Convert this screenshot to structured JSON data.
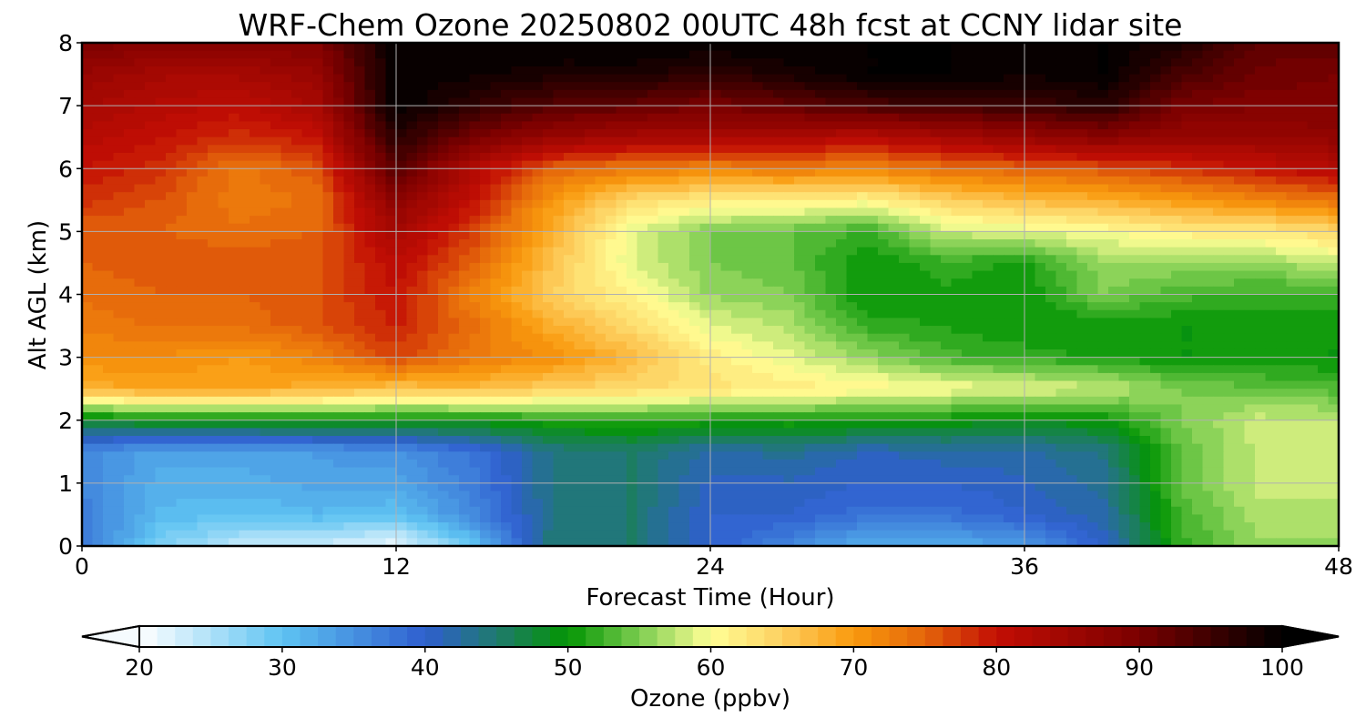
{
  "chart_data": {
    "type": "heatmap",
    "title": "WRF-Chem Ozone  20250802 00UTC 48h fcst at CCNY lidar site",
    "xlabel": "Forecast Time (Hour)",
    "ylabel": "Alt AGL (km)",
    "xlim": [
      0,
      48
    ],
    "ylim": [
      0,
      8
    ],
    "x_ticks": [
      0,
      12,
      24,
      36,
      48
    ],
    "y_ticks": [
      0,
      1,
      2,
      3,
      4,
      5,
      6,
      7,
      8
    ],
    "grid": true,
    "x": [
      0,
      3,
      6,
      9,
      12,
      15,
      18,
      21,
      24,
      27,
      30,
      33,
      36,
      39,
      42,
      45,
      48
    ],
    "y": [
      0,
      0.5,
      1,
      1.5,
      2,
      2.5,
      3,
      3.5,
      4,
      4.5,
      5,
      5.5,
      6,
      6.5,
      7,
      7.5,
      8
    ],
    "z_ppbv": [
      [
        38,
        28,
        24,
        23,
        21,
        30,
        45,
        45,
        40,
        36,
        32,
        32,
        34,
        40,
        52,
        56,
        56
      ],
      [
        37,
        31,
        30,
        31,
        30,
        36,
        44,
        45,
        40,
        40,
        38,
        38,
        40,
        42,
        53,
        57,
        57
      ],
      [
        36,
        32,
        32,
        33,
        33,
        37,
        44,
        45,
        41,
        41,
        40,
        40,
        41,
        43,
        54,
        58,
        58
      ],
      [
        36,
        33,
        33,
        34,
        35,
        38,
        44,
        45,
        42,
        43,
        41,
        42,
        42,
        44,
        54,
        58,
        58
      ],
      [
        48,
        50,
        50,
        50,
        50,
        50,
        51,
        52,
        51,
        51,
        51,
        50,
        49,
        50,
        55,
        58,
        58
      ],
      [
        68,
        69,
        69,
        68,
        66,
        67,
        65,
        64,
        63,
        62,
        61,
        60,
        59,
        58,
        55,
        54,
        53
      ],
      [
        71,
        71,
        70,
        72,
        77,
        73,
        71,
        67,
        62,
        59,
        56,
        53,
        52,
        51,
        50,
        50,
        50
      ],
      [
        73,
        74,
        74,
        76,
        79,
        74,
        68,
        64,
        59,
        57,
        52,
        51,
        50,
        50,
        50,
        50,
        50
      ],
      [
        74,
        75,
        75,
        76,
        80,
        72,
        65,
        61,
        56,
        55,
        50,
        51,
        50,
        55,
        53,
        52,
        52
      ],
      [
        75,
        76,
        76,
        76,
        81,
        75,
        66,
        59,
        55,
        54,
        50,
        52,
        51,
        56,
        56,
        56,
        58
      ],
      [
        75,
        75,
        74,
        75,
        84,
        77,
        68,
        59,
        55,
        54,
        52,
        58,
        59,
        60,
        62,
        62,
        64
      ],
      [
        78,
        76,
        73,
        74,
        88,
        80,
        70,
        64,
        62,
        62,
        61,
        65,
        67,
        68,
        70,
        72,
        74
      ],
      [
        80,
        78,
        73,
        76,
        93,
        82,
        75,
        73,
        72,
        73,
        72,
        74,
        75,
        76,
        78,
        80,
        82
      ],
      [
        82,
        80,
        78,
        80,
        97,
        90,
        86,
        84,
        84,
        83,
        82,
        84,
        86,
        88,
        86,
        86,
        87
      ],
      [
        84,
        82,
        81,
        84,
        100,
        96,
        93,
        92,
        90,
        92,
        94,
        95,
        95,
        97,
        90,
        89,
        89
      ],
      [
        86,
        84,
        84,
        86,
        100,
        99,
        98,
        98,
        96,
        98,
        100,
        100,
        99,
        100,
        94,
        91,
        90
      ],
      [
        90,
        88,
        88,
        89,
        100,
        100,
        100,
        100,
        100,
        100,
        100,
        100,
        100,
        100,
        98,
        92,
        92
      ]
    ],
    "colorbar": {
      "label": "Ozone  (ppbv)",
      "min": 20,
      "max": 100,
      "ticks": [
        20,
        30,
        40,
        50,
        60,
        70,
        80,
        90,
        100
      ],
      "extend": "both",
      "levels": 64,
      "colors": {
        "20": "#ffffff",
        "30": "#5ec3f2",
        "40": "#2f5fcf",
        "45": "#1f7a6e",
        "50": "#039503",
        "55": "#7ccd50",
        "60": "#ffff96",
        "65": "#fdd060",
        "70": "#f9990d",
        "75": "#e4650b",
        "80": "#c30e04",
        "90": "#7a0000",
        "100": "#000000"
      }
    }
  }
}
